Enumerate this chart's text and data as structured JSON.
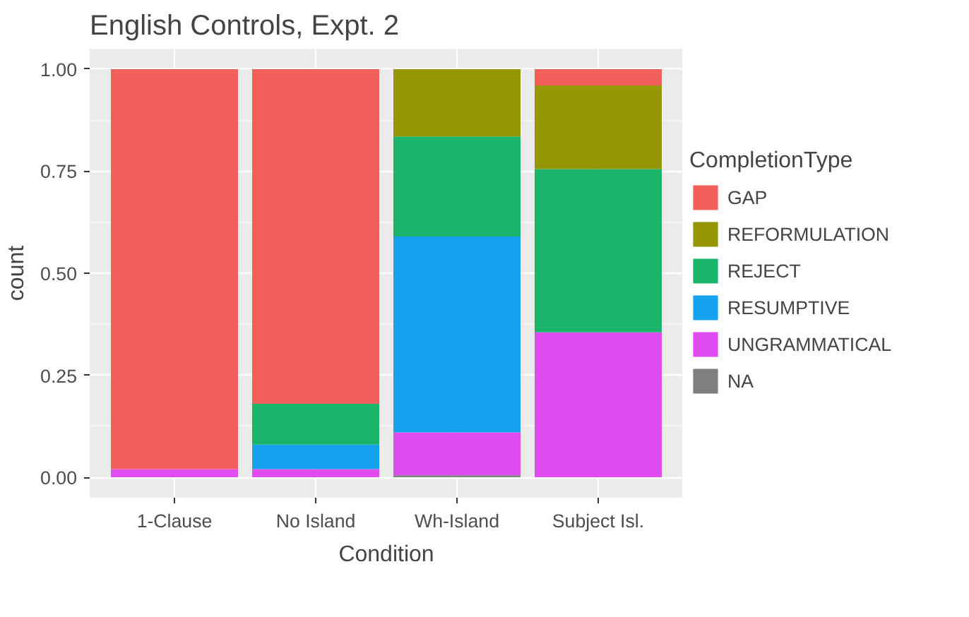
{
  "chart_data": {
    "type": "bar",
    "title": "English Controls, Expt. 2",
    "xlabel": "Condition",
    "ylabel": "count",
    "legend_title": "CompletionType",
    "categories": [
      "1-Clause",
      "No Island",
      "Wh-Island",
      "Subject Isl."
    ],
    "stacked": true,
    "series": [
      {
        "name": "NA",
        "color": "#7f7f7f",
        "values": [
          null,
          null,
          0.005,
          null
        ]
      },
      {
        "name": "UNGRAMMATICAL",
        "color": "#e04cf0",
        "values": [
          0.02,
          0.02,
          0.105,
          0.355
        ]
      },
      {
        "name": "RESUMPTIVE",
        "color": "#17a2f0",
        "values": [
          null,
          0.06,
          0.48,
          null
        ]
      },
      {
        "name": "REJECT",
        "color": "#1bb46b",
        "values": [
          null,
          0.1,
          0.245,
          0.4
        ]
      },
      {
        "name": "REFORMULATION",
        "color": "#949602",
        "values": [
          null,
          null,
          0.165,
          0.205
        ]
      },
      {
        "name": "GAP",
        "color": "#f3605b",
        "values": [
          0.98,
          0.82,
          null,
          0.04
        ]
      }
    ],
    "ylim": [
      -0.05,
      1.05
    ],
    "yticks": [
      {
        "value": 0,
        "label": "0.00"
      },
      {
        "value": 0.25,
        "label": "0.25"
      },
      {
        "value": 0.5,
        "label": "0.50"
      },
      {
        "value": 0.75,
        "label": "0.75"
      },
      {
        "value": 1,
        "label": "1.00"
      }
    ],
    "grid": true,
    "legend": "right"
  }
}
